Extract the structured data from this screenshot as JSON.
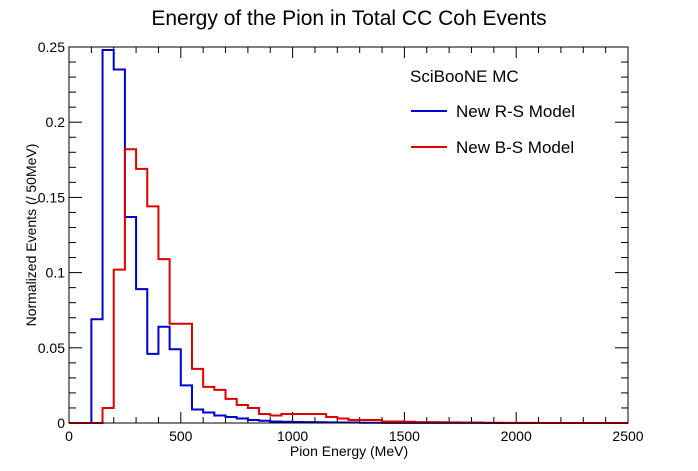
{
  "chart_data": {
    "type": "line",
    "title": "Energy of the Pion in Total CC Coh Events",
    "xlabel": "Pion Energy (MeV)",
    "ylabel": "Normalized Events (/ 50MeV)",
    "xlim": [
      0,
      2500
    ],
    "ylim": [
      0,
      0.25
    ],
    "x_ticks": [
      0,
      500,
      1000,
      1500,
      2000,
      2500
    ],
    "x_tick_labels": [
      "0",
      "500",
      "1000",
      "1500",
      "2000",
      "2500"
    ],
    "y_ticks": [
      0,
      0.05,
      0.1,
      0.15,
      0.2,
      0.25
    ],
    "y_tick_labels": [
      "0",
      "0.05",
      "0.1",
      "0.15",
      "0.2",
      "0.25"
    ],
    "bin_width": 50,
    "bin_edges_start": 0,
    "legend_header": "SciBooNE MC",
    "legend_position": "top-right",
    "grid": false,
    "series": [
      {
        "name": "New R-S Model",
        "color": "#0000cc",
        "values": [
          0,
          0,
          0.069,
          0.248,
          0.235,
          0.137,
          0.089,
          0.046,
          0.064,
          0.049,
          0.025,
          0.009,
          0.007,
          0.005,
          0.004,
          0.003,
          0.002,
          0.0015,
          0.001,
          0.0008,
          0.0007,
          0.0006,
          0.0005,
          0.0004,
          0.0003,
          0.0003,
          0.0002,
          0.0002,
          0.0001,
          0.0001,
          0.0001,
          0.0001,
          0.0001,
          0.0001,
          0.0001,
          0.0001,
          0.0001,
          0,
          0,
          0,
          0,
          0,
          0,
          0,
          0,
          0,
          0,
          0,
          0,
          0
        ]
      },
      {
        "name": "New B-S Model",
        "color": "#dd0000",
        "values": [
          0,
          0,
          0,
          0.01,
          0.102,
          0.182,
          0.169,
          0.144,
          0.109,
          0.066,
          0.066,
          0.036,
          0.024,
          0.022,
          0.016,
          0.012,
          0.01,
          0.006,
          0.005,
          0.006,
          0.006,
          0.006,
          0.006,
          0.004,
          0.003,
          0.002,
          0.002,
          0.002,
          0.001,
          0.001,
          0.0008,
          0.0006,
          0.0006,
          0.0005,
          0.0004,
          0.0003,
          0.0003,
          0.0002,
          0.0002,
          0.0001,
          0.0001,
          0.0001,
          0,
          0,
          0,
          0,
          0,
          0,
          0,
          0
        ]
      }
    ]
  }
}
